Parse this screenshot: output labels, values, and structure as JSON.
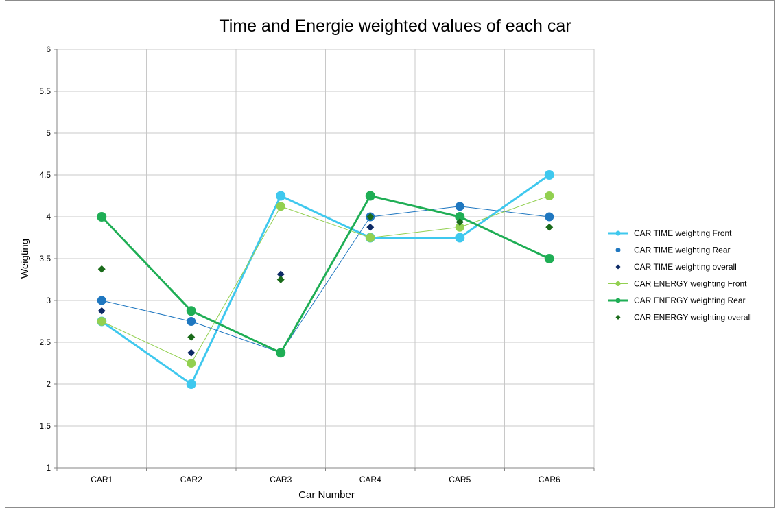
{
  "chart_data": {
    "type": "line",
    "title": "Time and Energie weighted values of each car",
    "xlabel": "Car Number",
    "ylabel": "Weigting",
    "categories": [
      "CAR1",
      "CAR2",
      "CAR3",
      "CAR4",
      "CAR5",
      "CAR6"
    ],
    "ylim": [
      1,
      6
    ],
    "yticks": [
      "1",
      "1.5",
      "2",
      "2.5",
      "3",
      "3.5",
      "4",
      "4.5",
      "5",
      "5.5",
      "6"
    ],
    "grid": true,
    "legend_position": "right",
    "series": [
      {
        "name": "CAR TIME weighting Front",
        "values": [
          2.75,
          2.0,
          4.25,
          3.75,
          3.75,
          4.5
        ],
        "color": "#3fc8ee",
        "line": "thick",
        "marker": "circle"
      },
      {
        "name": "CAR TIME weighting Rear",
        "values": [
          3.0,
          2.75,
          2.375,
          4.0,
          4.125,
          4.0
        ],
        "color": "#1f77c0",
        "line": "thin",
        "marker": "circle"
      },
      {
        "name": "CAR TIME weighting overall",
        "values": [
          2.875,
          2.375,
          3.3125,
          3.875,
          3.9375,
          4.25
        ],
        "color": "#0d2a66",
        "line": "none",
        "marker": "diamond"
      },
      {
        "name": "CAR ENERGY weighting Front",
        "values": [
          2.75,
          2.25,
          4.125,
          3.75,
          3.875,
          4.25
        ],
        "color": "#92d050",
        "line": "thin",
        "marker": "circle"
      },
      {
        "name": "CAR ENERGY weighting Rear",
        "values": [
          4.0,
          2.875,
          2.375,
          4.25,
          4.0,
          3.5
        ],
        "color": "#1fae55",
        "line": "thick",
        "marker": "circle"
      },
      {
        "name": "CAR ENERGY weighting overall",
        "values": [
          3.375,
          2.5625,
          3.25,
          4.0,
          3.9375,
          3.875
        ],
        "color": "#1a6b1a",
        "line": "none",
        "marker": "diamond"
      }
    ]
  }
}
